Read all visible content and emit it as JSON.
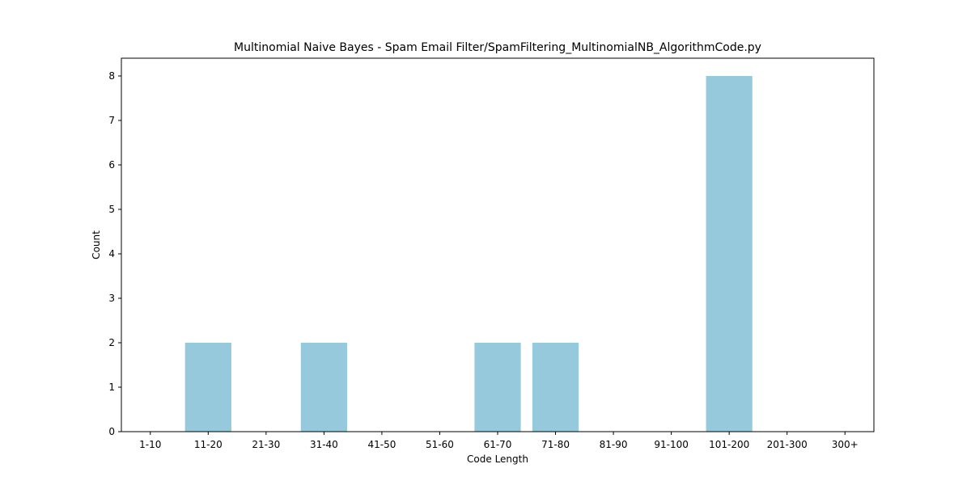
{
  "chart_data": {
    "type": "bar",
    "title": "Multinomial Naive Bayes - Spam Email Filter/SpamFiltering_MultinomialNB_AlgorithmCode.py",
    "xlabel": "Code Length",
    "ylabel": "Count",
    "categories": [
      "1-10",
      "11-20",
      "21-30",
      "31-40",
      "41-50",
      "51-60",
      "61-70",
      "71-80",
      "81-90",
      "91-100",
      "101-200",
      "201-300",
      "300+"
    ],
    "values": [
      0,
      2,
      0,
      2,
      0,
      0,
      2,
      2,
      0,
      0,
      8,
      0,
      0
    ],
    "ylim": [
      0,
      8.4
    ],
    "yticks": [
      0,
      1,
      2,
      3,
      4,
      5,
      6,
      7,
      8
    ],
    "bar_color": "#96c9dc",
    "grid": false,
    "legend": "none"
  }
}
